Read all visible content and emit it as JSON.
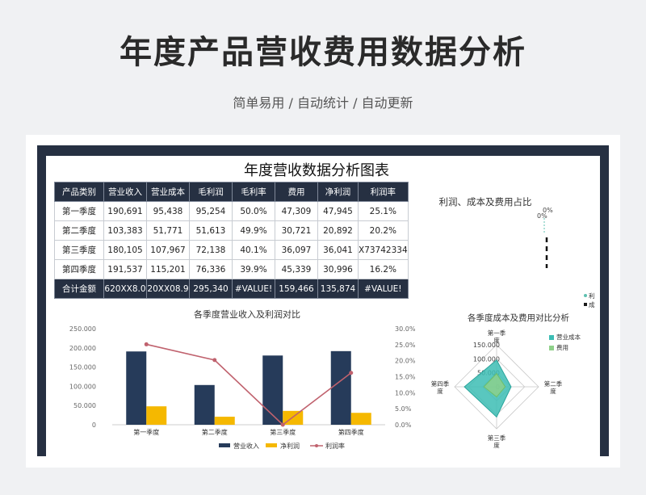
{
  "header": {
    "title": "年度产品营收费用数据分析",
    "subtitle": "简单易用 / 自动统计 / 自动更新"
  },
  "sheet": {
    "title": "年度营收数据分析图表"
  },
  "table": {
    "headers": [
      "产品类别",
      "营业收入",
      "营业成本",
      "毛利润",
      "毛利率",
      "费用",
      "净利润",
      "利润率"
    ],
    "rows": [
      [
        "第一季度",
        "190,691",
        "95,438",
        "95,254",
        "50.0%",
        "47,309",
        "47,945",
        "25.1%"
      ],
      [
        "第二季度",
        "103,383",
        "51,771",
        "51,613",
        "49.9%",
        "30,721",
        "20,892",
        "20.2%"
      ],
      [
        "第三季度",
        "180,105",
        "107,967",
        "72,138",
        "40.1%",
        "36,097",
        "36,041",
        "X73742334"
      ],
      [
        "第四季度",
        "191,537",
        "115,201",
        "76,336",
        "39.9%",
        "45,339",
        "30,996",
        "16.2%"
      ]
    ],
    "total": [
      "合计金额",
      "620XX8.0",
      "20XX08.9",
      "295,340",
      "#VALUE!",
      "159,466",
      "135,874",
      "#VALUE!"
    ]
  },
  "chart_data": [
    {
      "type": "bar",
      "title": "各季度营业收入及利润对比",
      "categories": [
        "第一季度",
        "第二季度",
        "第三季度",
        "第四季度"
      ],
      "series": [
        {
          "name": "营业收入",
          "kind": "bar",
          "axis": "left",
          "color": "#263b5a",
          "values": [
            190691,
            103383,
            180105,
            191537
          ]
        },
        {
          "name": "净利润",
          "kind": "bar",
          "axis": "left",
          "color": "#f5b800",
          "values": [
            47945,
            20892,
            36041,
            30996
          ]
        },
        {
          "name": "利润率",
          "kind": "line",
          "axis": "right",
          "color": "#c0626e",
          "values": [
            25.1,
            20.2,
            0,
            16.2
          ]
        }
      ],
      "left_ticks": [
        "250.000",
        "200.000",
        "150.000",
        "100.000",
        "50.000",
        "0"
      ],
      "right_ticks": [
        "30.0%",
        "25.0%",
        "20.0%",
        "15.0%",
        "10.0%",
        "5.0%",
        "0.0%"
      ],
      "ylim": [
        0,
        250000
      ],
      "y2lim": [
        0,
        30
      ],
      "legend": "bottom"
    },
    {
      "type": "pie",
      "title": "利润、成本及费用占比",
      "labels": [
        "0%",
        "0%"
      ],
      "legend_entries": [
        {
          "name": "利润",
          "color": "#5ec0b0"
        },
        {
          "name": "成本及费用",
          "color": "#1a1a1a"
        }
      ],
      "legend": "bottom-right"
    },
    {
      "type": "radar",
      "title": "各季度成本及费用对比分析",
      "categories": [
        "第一季度",
        "第二季度",
        "第三季度",
        "第四季度"
      ],
      "series": [
        {
          "name": "营业成本",
          "color": "#3cbdb4",
          "values": [
            95438,
            51771,
            107967,
            115201
          ]
        },
        {
          "name": "费用",
          "color": "#8fd18a",
          "values": [
            47309,
            30721,
            36097,
            45339
          ]
        }
      ],
      "ticks": [
        "150.000",
        "100.000",
        "50.000",
        "0"
      ],
      "rmax": 150000,
      "legend": "right"
    }
  ]
}
